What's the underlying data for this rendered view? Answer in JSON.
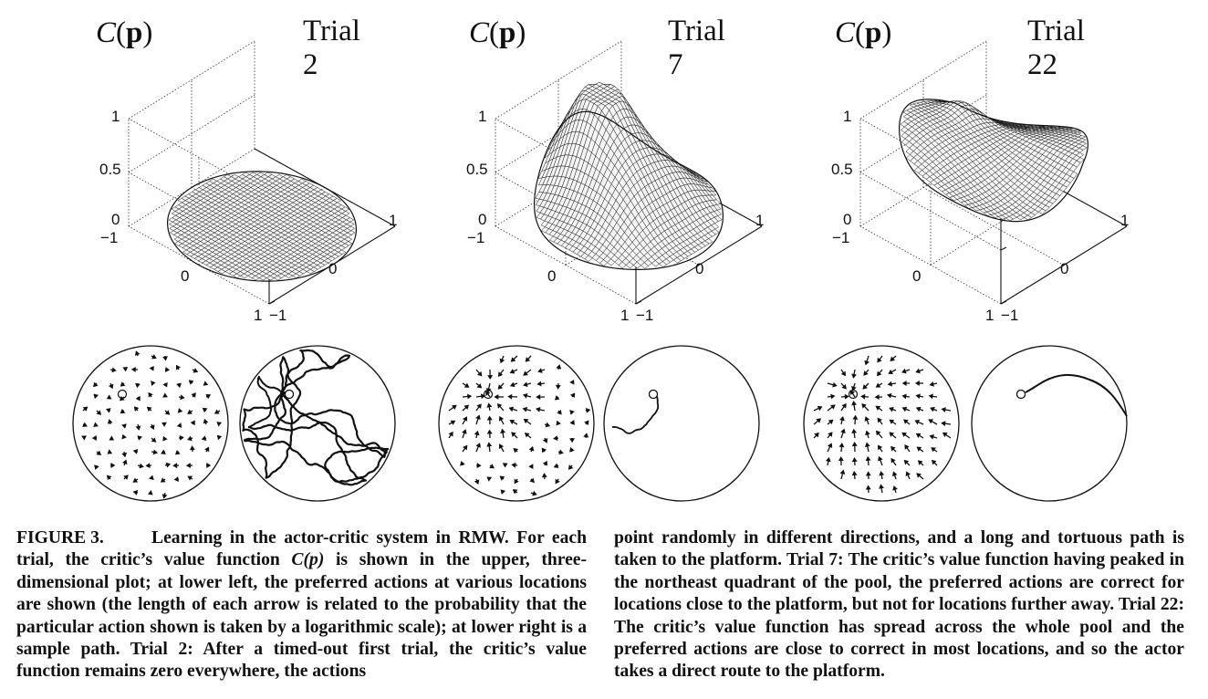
{
  "figure": {
    "label": "FIGURE 3.",
    "axis_label_letter": "C",
    "axis_label_arg": "p",
    "ticks": {
      "z": [
        "1",
        "0.5",
        "0"
      ],
      "y": [
        "−1",
        "0",
        "1"
      ],
      "x": [
        "1",
        "0",
        "−1"
      ]
    },
    "panels": [
      {
        "title": "Trial 2",
        "surface": "flat-disc"
      },
      {
        "title": "Trial 7",
        "surface": "single-peak"
      },
      {
        "title": "Trial 22",
        "surface": "spread-plateau"
      }
    ],
    "bottom_circles": [
      {
        "kind": "action-arrows",
        "trial": "Trial 2"
      },
      {
        "kind": "sample-path",
        "trial": "Trial 2"
      },
      {
        "kind": "action-arrows",
        "trial": "Trial 7"
      },
      {
        "kind": "sample-path",
        "trial": "Trial 7"
      },
      {
        "kind": "action-arrows",
        "trial": "Trial 22"
      },
      {
        "kind": "sample-path",
        "trial": "Trial 22"
      }
    ]
  },
  "caption": {
    "left": {
      "lead": "Learning in the actor-critic system in RMW. For each trial, the critic’s value function ",
      "math": "C(p)",
      "rest": " is shown in the upper, three-dimensional plot; at lower left, the preferred actions at various locations are shown (the length of each arrow is related to the probability that the particular action shown is taken by a logarithmic scale); at lower right is a sample path. Trial 2: After a timed-out first trial, the critic’s value function remains zero everywhere, the actions"
    },
    "right": "point randomly in different directions, and a long and tortuous path is taken to the platform. Trial 7: The critic’s value function having peaked in the northeast quadrant of the pool, the preferred actions are correct for locations close to the platform, but not for locations further away. Trial 22: The critic’s value function has spread across the whole pool and the preferred actions are close to correct in most locations, and so the actor takes a direct route to the platform."
  }
}
